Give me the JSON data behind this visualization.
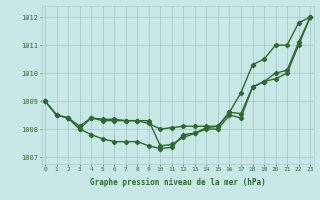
{
  "x": [
    0,
    1,
    2,
    3,
    4,
    5,
    6,
    7,
    8,
    9,
    10,
    11,
    12,
    13,
    14,
    15,
    16,
    17,
    18,
    19,
    20,
    21,
    22,
    23
  ],
  "line1": [
    1009.0,
    1008.5,
    1008.4,
    1008.1,
    1008.4,
    1008.35,
    1008.35,
    1008.3,
    1008.3,
    1008.2,
    1008.0,
    1008.05,
    1008.1,
    1008.1,
    1008.1,
    1008.1,
    1008.6,
    1008.55,
    1009.5,
    1009.7,
    1010.0,
    1010.1,
    1011.1,
    1012.0
  ],
  "line2": [
    1009.0,
    1008.5,
    1008.4,
    1008.0,
    1007.8,
    1007.65,
    1007.55,
    1007.55,
    1007.55,
    1007.4,
    1007.3,
    1007.35,
    1007.8,
    1007.85,
    1008.05,
    1008.1,
    1008.6,
    1009.3,
    1010.3,
    1010.5,
    1011.0,
    1011.0,
    1011.8,
    1012.0
  ],
  "line3": [
    1009.0,
    1008.5,
    1008.4,
    1008.0,
    1008.4,
    1008.3,
    1008.3,
    1008.3,
    1008.3,
    1008.3,
    1007.4,
    1007.45,
    1007.7,
    1007.85,
    1008.0,
    1008.0,
    1008.5,
    1008.4,
    1009.5,
    1009.7,
    1009.8,
    1010.0,
    1011.0,
    1012.0
  ],
  "line_color": "#2d6a2d",
  "bg_color": "#c8e8e8",
  "grid_color": "#aacaca",
  "ylabel_values": [
    1007,
    1008,
    1009,
    1010,
    1011,
    1012
  ],
  "ylim": [
    1006.75,
    1012.4
  ],
  "xlim": [
    -0.3,
    23.3
  ],
  "xlabel": "Graphe pression niveau de la mer (hPa)",
  "marker": "D",
  "marker_size": 2.2,
  "linewidth": 1.0
}
